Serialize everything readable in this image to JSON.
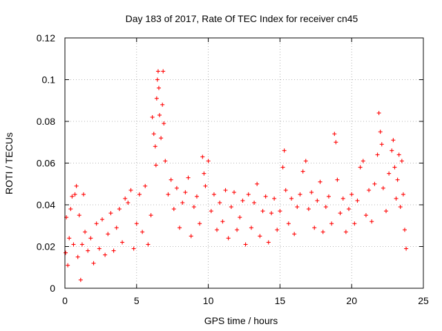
{
  "chart_data": {
    "type": "scatter",
    "title": "Day 183 of 2017, Rate Of TEC Index for receiver cn45",
    "xlabel": "GPS time / hours",
    "ylabel": "ROTI / TECUs",
    "xlim": [
      0,
      25
    ],
    "ylim": [
      0,
      0.12
    ],
    "x_ticks": [
      0,
      5,
      10,
      15,
      20,
      25
    ],
    "y_ticks": [
      0,
      0.02,
      0.04,
      0.06,
      0.08,
      0.1,
      0.12
    ],
    "x_tick_labels": [
      "0",
      "5",
      "10",
      "15",
      "20",
      "25"
    ],
    "y_tick_labels": [
      "0",
      "0.02",
      "0.04",
      "0.06",
      "0.08",
      "0.1",
      "0.12"
    ],
    "grid": true,
    "legend": "none",
    "marker": "+",
    "colors": {
      "points": "#ff0000",
      "axes": "#000000",
      "grid": "#9a9a9a"
    },
    "series": [
      {
        "name": "ROTI",
        "points": [
          [
            0.05,
            0.017
          ],
          [
            0.1,
            0.034
          ],
          [
            0.2,
            0.011
          ],
          [
            0.3,
            0.024
          ],
          [
            0.4,
            0.038
          ],
          [
            0.5,
            0.044
          ],
          [
            0.6,
            0.021
          ],
          [
            0.7,
            0.045
          ],
          [
            0.8,
            0.049
          ],
          [
            0.9,
            0.015
          ],
          [
            1.0,
            0.035
          ],
          [
            1.1,
            0.004
          ],
          [
            1.2,
            0.021
          ],
          [
            1.3,
            0.045
          ],
          [
            1.4,
            0.027
          ],
          [
            1.6,
            0.018
          ],
          [
            1.8,
            0.024
          ],
          [
            2.0,
            0.012
          ],
          [
            2.2,
            0.031
          ],
          [
            2.4,
            0.019
          ],
          [
            2.6,
            0.033
          ],
          [
            2.8,
            0.016
          ],
          [
            3.0,
            0.026
          ],
          [
            3.2,
            0.036
          ],
          [
            3.4,
            0.018
          ],
          [
            3.6,
            0.029
          ],
          [
            3.8,
            0.038
          ],
          [
            4.0,
            0.022
          ],
          [
            4.2,
            0.043
          ],
          [
            4.4,
            0.041
          ],
          [
            4.6,
            0.047
          ],
          [
            4.8,
            0.019
          ],
          [
            5.0,
            0.031
          ],
          [
            5.2,
            0.045
          ],
          [
            5.4,
            0.027
          ],
          [
            5.6,
            0.049
          ],
          [
            5.8,
            0.021
          ],
          [
            6.0,
            0.035
          ],
          [
            6.1,
            0.082
          ],
          [
            6.2,
            0.074
          ],
          [
            6.3,
            0.068
          ],
          [
            6.35,
            0.059
          ],
          [
            6.4,
            0.091
          ],
          [
            6.45,
            0.1
          ],
          [
            6.5,
            0.104
          ],
          [
            6.55,
            0.096
          ],
          [
            6.6,
            0.083
          ],
          [
            6.7,
            0.072
          ],
          [
            6.8,
            0.088
          ],
          [
            6.85,
            0.104
          ],
          [
            6.9,
            0.079
          ],
          [
            7.0,
            0.061
          ],
          [
            7.2,
            0.045
          ],
          [
            7.4,
            0.052
          ],
          [
            7.6,
            0.038
          ],
          [
            7.8,
            0.048
          ],
          [
            8.0,
            0.029
          ],
          [
            8.2,
            0.041
          ],
          [
            8.4,
            0.046
          ],
          [
            8.6,
            0.053
          ],
          [
            8.8,
            0.025
          ],
          [
            9.0,
            0.039
          ],
          [
            9.2,
            0.044
          ],
          [
            9.4,
            0.031
          ],
          [
            9.6,
            0.063
          ],
          [
            9.7,
            0.055
          ],
          [
            9.8,
            0.049
          ],
          [
            10.0,
            0.061
          ],
          [
            10.2,
            0.037
          ],
          [
            10.4,
            0.045
          ],
          [
            10.6,
            0.028
          ],
          [
            10.8,
            0.041
          ],
          [
            11.0,
            0.032
          ],
          [
            11.2,
            0.047
          ],
          [
            11.4,
            0.024
          ],
          [
            11.6,
            0.039
          ],
          [
            11.8,
            0.046
          ],
          [
            12.0,
            0.028
          ],
          [
            12.2,
            0.034
          ],
          [
            12.4,
            0.042
          ],
          [
            12.6,
            0.021
          ],
          [
            12.8,
            0.045
          ],
          [
            13.0,
            0.029
          ],
          [
            13.2,
            0.041
          ],
          [
            13.4,
            0.05
          ],
          [
            13.6,
            0.025
          ],
          [
            13.8,
            0.037
          ],
          [
            14.0,
            0.044
          ],
          [
            14.2,
            0.022
          ],
          [
            14.4,
            0.036
          ],
          [
            14.6,
            0.043
          ],
          [
            14.8,
            0.028
          ],
          [
            15.0,
            0.037
          ],
          [
            15.2,
            0.058
          ],
          [
            15.3,
            0.066
          ],
          [
            15.4,
            0.047
          ],
          [
            15.6,
            0.031
          ],
          [
            15.8,
            0.043
          ],
          [
            16.0,
            0.026
          ],
          [
            16.2,
            0.039
          ],
          [
            16.4,
            0.045
          ],
          [
            16.6,
            0.056
          ],
          [
            16.8,
            0.061
          ],
          [
            17.0,
            0.038
          ],
          [
            17.2,
            0.046
          ],
          [
            17.4,
            0.029
          ],
          [
            17.6,
            0.042
          ],
          [
            17.8,
            0.051
          ],
          [
            18.0,
            0.027
          ],
          [
            18.2,
            0.039
          ],
          [
            18.4,
            0.044
          ],
          [
            18.6,
            0.031
          ],
          [
            18.8,
            0.074
          ],
          [
            18.9,
            0.07
          ],
          [
            19.0,
            0.052
          ],
          [
            19.2,
            0.036
          ],
          [
            19.4,
            0.043
          ],
          [
            19.6,
            0.027
          ],
          [
            19.8,
            0.038
          ],
          [
            20.0,
            0.045
          ],
          [
            20.2,
            0.031
          ],
          [
            20.4,
            0.042
          ],
          [
            20.6,
            0.058
          ],
          [
            20.8,
            0.061
          ],
          [
            21.0,
            0.035
          ],
          [
            21.2,
            0.047
          ],
          [
            21.4,
            0.032
          ],
          [
            21.6,
            0.05
          ],
          [
            21.8,
            0.064
          ],
          [
            21.9,
            0.084
          ],
          [
            22.0,
            0.075
          ],
          [
            22.1,
            0.069
          ],
          [
            22.2,
            0.048
          ],
          [
            22.4,
            0.037
          ],
          [
            22.6,
            0.055
          ],
          [
            22.8,
            0.066
          ],
          [
            22.9,
            0.071
          ],
          [
            23.0,
            0.058
          ],
          [
            23.1,
            0.043
          ],
          [
            23.2,
            0.052
          ],
          [
            23.3,
            0.064
          ],
          [
            23.4,
            0.039
          ],
          [
            23.5,
            0.061
          ],
          [
            23.6,
            0.045
          ],
          [
            23.7,
            0.028
          ],
          [
            23.8,
            0.019
          ]
        ]
      }
    ]
  }
}
